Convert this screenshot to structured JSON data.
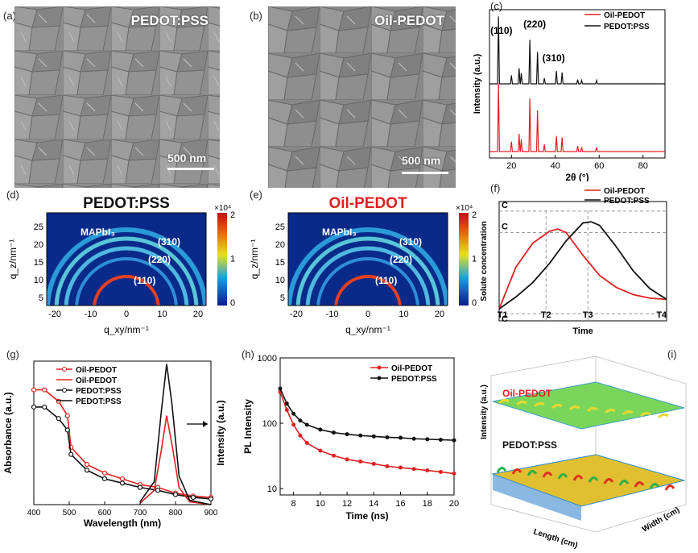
{
  "panels": {
    "a": {
      "label": "(a)",
      "title": "PEDOT:PSS",
      "scale": "500 nm"
    },
    "b": {
      "label": "(b)",
      "title": "Oil-PEDOT",
      "scale": "500 nm"
    },
    "c": {
      "label": "(c)"
    },
    "d": {
      "label": "(d)",
      "title": "PEDOT:PSS"
    },
    "e": {
      "label": "(e)",
      "title": "Oil-PEDOT"
    },
    "f": {
      "label": "(f)"
    },
    "g": {
      "label": "(g)"
    },
    "h": {
      "label": "(h)"
    },
    "i": {
      "label": "(i)"
    }
  },
  "colors": {
    "red": "#e02020",
    "black": "#111111"
  },
  "chart_data": [
    {
      "id": "c",
      "type": "line",
      "xlabel": "2θ (°)",
      "ylabel": "Intensity (a.u.)",
      "xlim": [
        10,
        90
      ],
      "xticks": [
        "20",
        "40",
        "60",
        "80"
      ],
      "legend": [
        "Oil-PEDOT",
        "PEDOT:PSS"
      ],
      "annotations": [
        "(110)",
        "(220)",
        "(310)"
      ],
      "peaks": [
        14.1,
        20.0,
        23.5,
        24.5,
        28.4,
        31.9,
        35.0,
        40.5,
        43.1,
        50.2,
        52.0,
        58.8
      ],
      "series": [
        {
          "name": "PEDOT:PSS",
          "color": "#111111",
          "heights": [
            0.95,
            0.12,
            0.22,
            0.15,
            0.62,
            0.45,
            0.08,
            0.18,
            0.16,
            0.06,
            0.05,
            0.05
          ]
        },
        {
          "name": "Oil-PEDOT",
          "color": "#e02020",
          "heights": [
            0.95,
            0.14,
            0.25,
            0.17,
            0.75,
            0.58,
            0.1,
            0.22,
            0.2,
            0.08,
            0.06,
            0.06
          ]
        }
      ]
    },
    {
      "id": "d",
      "type": "heatmap",
      "xlabel": "q_xy/nm⁻¹",
      "ylabel": "q_z/nm⁻¹",
      "xticks": [
        "-20",
        "-10",
        "0",
        "10",
        "20"
      ],
      "yticks": [
        "5",
        "10",
        "15",
        "20",
        "25"
      ],
      "colorbar_ticks": [
        "2",
        "1",
        "0"
      ],
      "colorbar_exp": "×10⁴",
      "annotations": [
        "MAPbI₃",
        "(310)",
        "(220)",
        "(110)"
      ]
    },
    {
      "id": "e",
      "type": "heatmap",
      "xlabel": "q_xy/nm⁻¹",
      "ylabel": "q_z/nm⁻¹",
      "xticks": [
        "-20",
        "-10",
        "0",
        "10",
        "20"
      ],
      "yticks": [
        "5",
        "10",
        "15",
        "20",
        "25"
      ],
      "colorbar_ticks": [
        "2",
        "1",
        "0"
      ],
      "colorbar_exp": "×10⁴",
      "annotations": [
        "MAPbI₃",
        "(310)",
        "(220)",
        "(110)"
      ]
    },
    {
      "id": "f",
      "type": "line",
      "xlabel": "Time",
      "ylabel": "Solute concentration",
      "legend": [
        "Oil-PEDOT",
        "PEDOT:PSS"
      ],
      "levels": [
        "C_max^nu",
        "C_min^nu",
        "C_s"
      ],
      "times": [
        "T1",
        "T2",
        "T3",
        "T4"
      ],
      "series": [
        {
          "name": "Oil-PEDOT",
          "color": "#e02020",
          "x": [
            0.0,
            0.1,
            0.2,
            0.3,
            0.35,
            0.4,
            0.5,
            0.6,
            0.7,
            0.8,
            0.9,
            1.0
          ],
          "y": [
            0.1,
            0.45,
            0.65,
            0.75,
            0.77,
            0.74,
            0.55,
            0.38,
            0.28,
            0.22,
            0.19,
            0.18
          ]
        },
        {
          "name": "PEDOT:PSS",
          "color": "#111111",
          "x": [
            0.0,
            0.1,
            0.2,
            0.3,
            0.4,
            0.5,
            0.55,
            0.6,
            0.7,
            0.8,
            0.9,
            1.0
          ],
          "y": [
            0.1,
            0.2,
            0.32,
            0.48,
            0.67,
            0.82,
            0.83,
            0.8,
            0.62,
            0.42,
            0.27,
            0.18
          ]
        }
      ]
    },
    {
      "id": "g",
      "type": "line",
      "xlabel": "Wavelength (nm)",
      "ylabel": "Absorbance (a.u.)",
      "ylabel2": "Intensity (a.u.)",
      "xlim": [
        400,
        900
      ],
      "xticks": [
        "400",
        "500",
        "600",
        "700",
        "800",
        "900"
      ],
      "legend": [
        "Oil-PEDOT",
        "Oil-PEDOT",
        "PEDOT:PSS",
        "PEDOT:PSS"
      ],
      "series": [
        {
          "name": "Oil-PEDOT",
          "color": "#e02020",
          "x": [
            400,
            430,
            470,
            495,
            505,
            550,
            600,
            650,
            700,
            750,
            800,
            850,
            900
          ],
          "y": [
            0.8,
            0.8,
            0.72,
            0.62,
            0.4,
            0.28,
            0.22,
            0.18,
            0.14,
            0.12,
            0.08,
            0.06,
            0.05
          ]
        },
        {
          "name": "PEDOT:PSS",
          "color": "#111111",
          "x": [
            400,
            430,
            470,
            495,
            505,
            550,
            600,
            650,
            700,
            750,
            800,
            850,
            900
          ],
          "y": [
            0.68,
            0.68,
            0.6,
            0.52,
            0.35,
            0.24,
            0.18,
            0.15,
            0.12,
            0.1,
            0.07,
            0.05,
            0.04
          ]
        },
        {
          "name": "Oil-PEDOT",
          "color": "#e02020",
          "x": [
            700,
            740,
            760,
            775,
            790,
            810,
            840,
            900
          ],
          "y": [
            0.01,
            0.1,
            0.38,
            0.62,
            0.42,
            0.12,
            0.02,
            0.0
          ]
        },
        {
          "name": "PEDOT:PSS",
          "color": "#111111",
          "x": [
            700,
            740,
            760,
            775,
            790,
            810,
            840,
            900
          ],
          "y": [
            0.02,
            0.16,
            0.65,
            0.98,
            0.7,
            0.2,
            0.03,
            0.0
          ]
        }
      ]
    },
    {
      "id": "h",
      "type": "line",
      "xlabel": "Time (ns)",
      "ylabel": "PL Intensity",
      "ylog": true,
      "xlim": [
        7,
        20
      ],
      "ylim": [
        8,
        1000
      ],
      "xticks": [
        "8",
        "10",
        "12",
        "14",
        "16",
        "18",
        "20"
      ],
      "yticks": [
        "1000",
        "100",
        "10"
      ],
      "legend": [
        "Oil-PEDOT",
        "PEDOT:PSS"
      ],
      "series": [
        {
          "name": "Oil-PEDOT",
          "color": "#e02020",
          "x": [
            7.0,
            7.5,
            8.0,
            8.5,
            9.0,
            10.0,
            11.0,
            12.0,
            13.0,
            14.0,
            15.0,
            16.0,
            17.0,
            18.0,
            19.0,
            20.0
          ],
          "y": [
            300,
            160,
            95,
            65,
            50,
            38,
            32,
            28,
            26,
            24,
            22,
            21,
            20,
            19,
            18,
            17
          ]
        },
        {
          "name": "PEDOT:PSS",
          "color": "#111111",
          "x": [
            7.0,
            7.5,
            8.0,
            8.5,
            9.0,
            10.0,
            11.0,
            12.0,
            13.0,
            14.0,
            15.0,
            16.0,
            17.0,
            18.0,
            19.0,
            20.0
          ],
          "y": [
            340,
            200,
            140,
            110,
            95,
            80,
            72,
            68,
            65,
            63,
            61,
            60,
            58,
            57,
            56,
            55
          ]
        }
      ]
    },
    {
      "id": "i",
      "type": "surface",
      "zlabel": "Intensity (a.u.)",
      "xlabel": "Length (cm)",
      "ylabel": "Width (cm)",
      "annotations": [
        "Oil-PEDOT",
        "PEDOT:PSS"
      ]
    }
  ]
}
